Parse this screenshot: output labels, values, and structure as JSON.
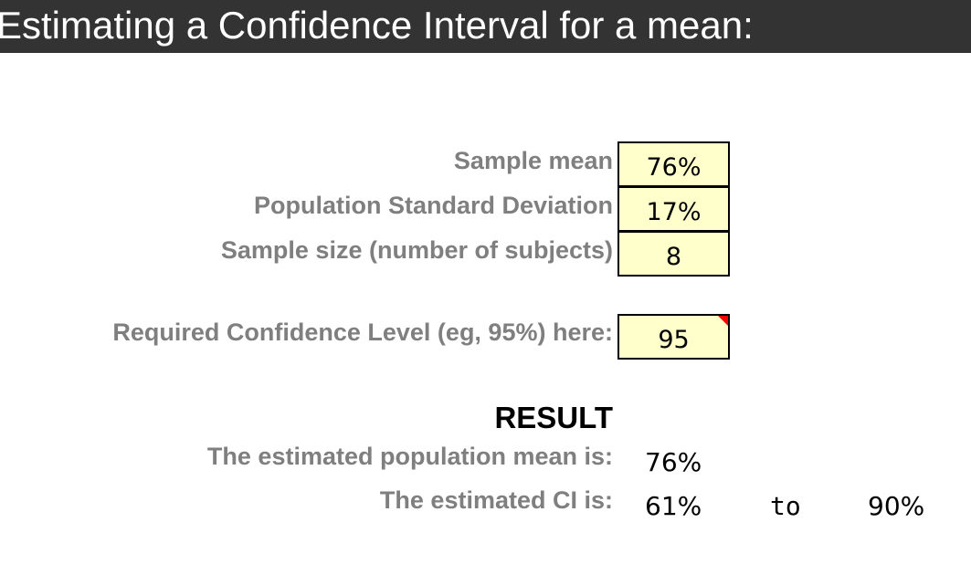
{
  "title": "Estimating a Confidence Interval for a mean:",
  "inputs": {
    "sample_mean_label": "Sample mean",
    "sample_mean_value": "76%",
    "std_dev_label": "Population Standard Deviation",
    "std_dev_value": "17%",
    "sample_size_label": "Sample size (number of subjects)",
    "sample_size_value": "8",
    "confidence_label": "Required Confidence Level (eg, 95%) here:",
    "confidence_value": "95"
  },
  "result": {
    "heading": "RESULT",
    "mean_label": "The estimated population mean is:",
    "mean_value": "76%",
    "ci_label": "The estimated CI is:",
    "ci_lower": "61%",
    "ci_to": "to",
    "ci_upper": "90%"
  },
  "colors": {
    "title_bar": "#333333",
    "label_gray": "#7f7f7f",
    "input_fill": "#ffffcc",
    "comment_indicator": "#ff0000"
  }
}
